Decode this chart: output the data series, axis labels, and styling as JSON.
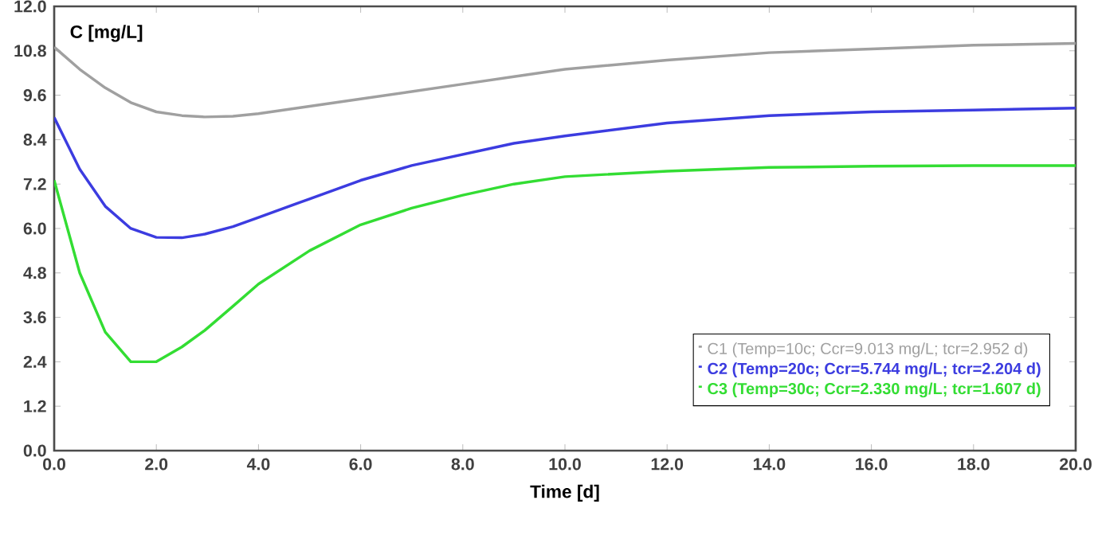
{
  "chart_data": {
    "type": "line",
    "xlabel": "Time [d]",
    "ylabel": "C [mg/L]",
    "xlim": [
      0,
      20
    ],
    "xticks": [
      {
        "value": 0,
        "label": "0.0"
      },
      {
        "value": 2,
        "label": "2.0"
      },
      {
        "value": 4,
        "label": "4.0"
      },
      {
        "value": 6,
        "label": "6.0"
      },
      {
        "value": 8,
        "label": "8.0"
      },
      {
        "value": 10,
        "label": "10.0"
      },
      {
        "value": 12,
        "label": "12.0"
      },
      {
        "value": 14,
        "label": "14.0"
      },
      {
        "value": 16,
        "label": "16.0"
      },
      {
        "value": 18,
        "label": "18.0"
      },
      {
        "value": 20,
        "label": "20.0"
      }
    ],
    "ylim": [
      0,
      12
    ],
    "yticks": [
      {
        "value": 0,
        "label": "0.0"
      },
      {
        "value": 1.2,
        "label": "1.2"
      },
      {
        "value": 2.4,
        "label": "2.4"
      },
      {
        "value": 3.6,
        "label": "3.6"
      },
      {
        "value": 4.8,
        "label": "4.8"
      },
      {
        "value": 6,
        "label": "6.0"
      },
      {
        "value": 7.2,
        "label": "7.2"
      },
      {
        "value": 8.4,
        "label": "8.4"
      },
      {
        "value": 9.6,
        "label": "9.6"
      },
      {
        "value": 10.8,
        "label": "10.8"
      },
      {
        "value": 12,
        "label": "12.0"
      }
    ],
    "grid": false,
    "legend": "bottom right",
    "marker": "none",
    "line_style": "solid",
    "x": [
      0,
      0.5,
      1,
      1.5,
      2,
      2.5,
      2.95,
      3.5,
      4,
      5,
      6,
      7,
      8,
      9,
      10,
      12,
      14,
      16,
      18,
      20
    ],
    "series": [
      {
        "name": "C1 (Temp=10c; Ccr=9.013 mg/L; tcr=2.952 d)",
        "color": "#a0a0a0",
        "values": [
          10.9,
          10.3,
          9.8,
          9.4,
          9.15,
          9.05,
          9.013,
          9.03,
          9.1,
          9.3,
          9.5,
          9.7,
          9.9,
          10.1,
          10.3,
          10.55,
          10.75,
          10.85,
          10.95,
          11.0
        ]
      },
      {
        "name": "C2 (Temp=20c; Ccr=5.744 mg/L; tcr=2.204 d)",
        "color": "#3c3ce0",
        "values": [
          9.0,
          7.6,
          6.6,
          6.0,
          5.76,
          5.75,
          5.85,
          6.05,
          6.3,
          6.8,
          7.3,
          7.7,
          8.0,
          8.3,
          8.5,
          8.85,
          9.05,
          9.15,
          9.2,
          9.25
        ]
      },
      {
        "name": "C3 (Temp=30c; Ccr=2.330 mg/L; tcr=1.607 d)",
        "color": "#33dd33",
        "values": [
          7.3,
          4.8,
          3.2,
          2.4,
          2.4,
          2.8,
          3.25,
          3.9,
          4.5,
          5.4,
          6.1,
          6.55,
          6.9,
          7.2,
          7.4,
          7.55,
          7.65,
          7.68,
          7.7,
          7.7
        ]
      }
    ]
  }
}
